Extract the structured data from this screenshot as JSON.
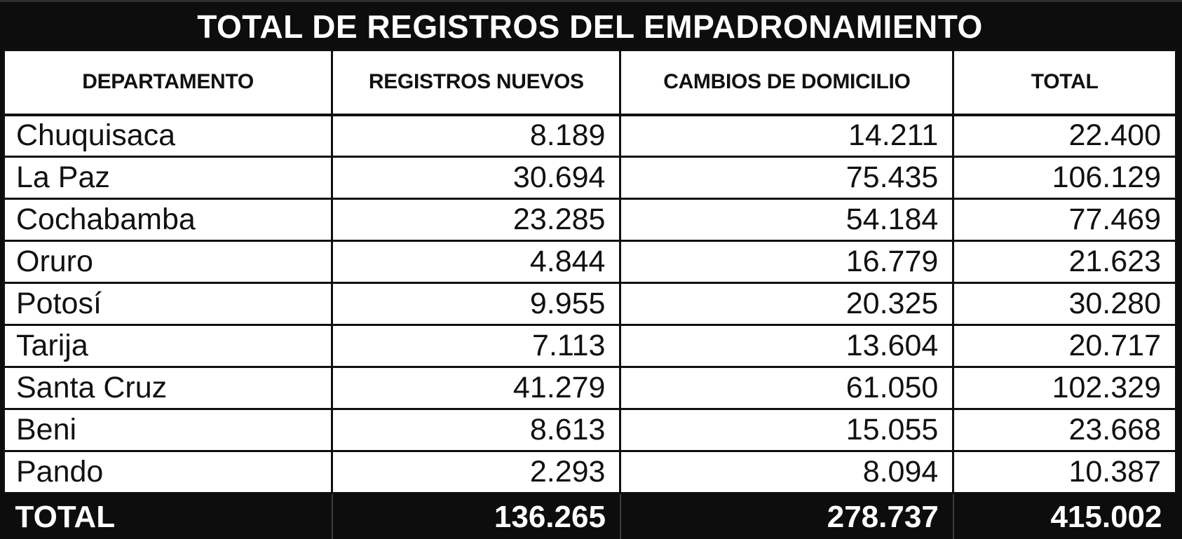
{
  "title": "TOTAL DE REGISTROS DEL EMPADRONAMIENTO",
  "columns": {
    "departamento": "DEPARTAMENTO",
    "registros_nuevos": "REGISTROS NUEVOS",
    "cambios_domicilio": "CAMBIOS DE DOMICILIO",
    "total": "TOTAL"
  },
  "rows": [
    {
      "name": "Chuquisaca",
      "nuevos": "8.189",
      "cambios": "14.211",
      "total": "22.400"
    },
    {
      "name": "La Paz",
      "nuevos": "30.694",
      "cambios": "75.435",
      "total": "106.129"
    },
    {
      "name": "Cochabamba",
      "nuevos": "23.285",
      "cambios": "54.184",
      "total": "77.469"
    },
    {
      "name": "Oruro",
      "nuevos": "4.844",
      "cambios": "16.779",
      "total": "21.623"
    },
    {
      "name": "Potosí",
      "nuevos": "9.955",
      "cambios": "20.325",
      "total": "30.280"
    },
    {
      "name": "Tarija",
      "nuevos": "7.113",
      "cambios": "13.604",
      "total": "20.717"
    },
    {
      "name": "Santa Cruz",
      "nuevos": "41.279",
      "cambios": "61.050",
      "total": "102.329"
    },
    {
      "name": "Beni",
      "nuevos": "8.613",
      "cambios": "15.055",
      "total": "23.668"
    },
    {
      "name": "Pando",
      "nuevos": "2.293",
      "cambios": "8.094",
      "total": "10.387"
    }
  ],
  "footer": {
    "label": "TOTAL",
    "nuevos": "136.265",
    "cambios": "278.737",
    "total": "415.002"
  },
  "colors": {
    "bar_bg": "#0d0d0d",
    "cell_bg": "#ffffff",
    "text": "#111111",
    "inverse_text": "#ffffff"
  },
  "chart_data": {
    "type": "table",
    "title": "TOTAL DE REGISTROS DEL EMPADRONAMIENTO",
    "columns": [
      "DEPARTAMENTO",
      "REGISTROS NUEVOS",
      "CAMBIOS DE DOMICILIO",
      "TOTAL"
    ],
    "rows": [
      [
        "Chuquisaca",
        8189,
        14211,
        22400
      ],
      [
        "La Paz",
        30694,
        75435,
        106129
      ],
      [
        "Cochabamba",
        23285,
        54184,
        77469
      ],
      [
        "Oruro",
        4844,
        16779,
        21623
      ],
      [
        "Potosí",
        9955,
        20325,
        30280
      ],
      [
        "Tarija",
        7113,
        13604,
        20717
      ],
      [
        "Santa Cruz",
        41279,
        61050,
        102329
      ],
      [
        "Beni",
        8613,
        15055,
        23668
      ],
      [
        "Pando",
        2293,
        8094,
        10387
      ]
    ],
    "totals_row": [
      "TOTAL",
      136265,
      278737,
      415002
    ],
    "number_format": "period as thousands separator"
  }
}
